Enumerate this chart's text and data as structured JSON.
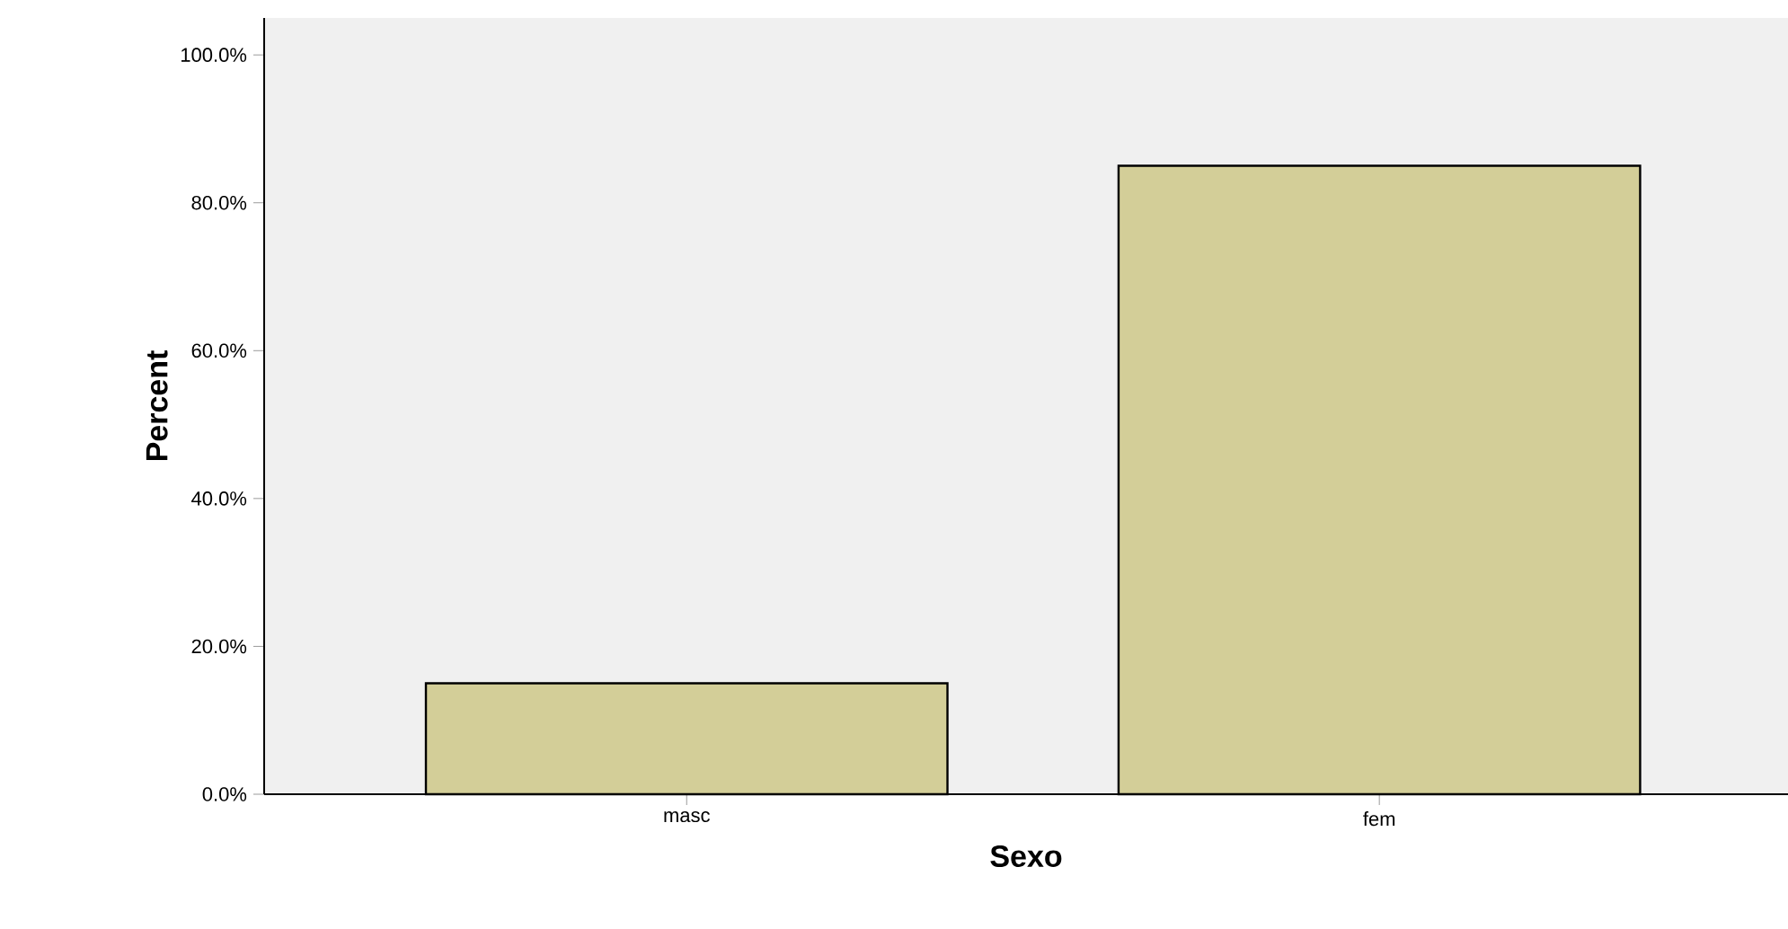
{
  "chart_data": {
    "type": "bar",
    "xlabel": "Sexo",
    "ylabel": "Percent",
    "categories": [
      "masc",
      "fem"
    ],
    "values": [
      15,
      85
    ],
    "color": "#d3ce98",
    "ylim": [
      0,
      105
    ],
    "yticks": [
      {
        "value": 0,
        "label": "0.0%"
      },
      {
        "value": 20,
        "label": "20.0%"
      },
      {
        "value": 40,
        "label": "40.0%"
      },
      {
        "value": 60,
        "label": "60.0%"
      },
      {
        "value": 80,
        "label": "80.0%"
      },
      {
        "value": 100,
        "label": "100.0%"
      }
    ]
  }
}
